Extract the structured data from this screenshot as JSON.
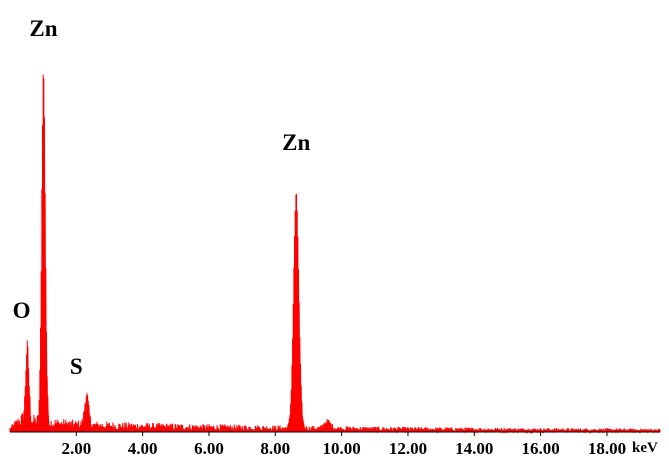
{
  "chart_data": {
    "type": "line",
    "title": "",
    "xlabel": "keV",
    "ylabel": "",
    "xlim": [
      0,
      19.6
    ],
    "ylim": [
      0,
      100
    ],
    "grid": false,
    "legend": "none",
    "series_color": "#ff0000",
    "x_ticks": [
      "2.00",
      "4.00",
      "6.00",
      "8.00",
      "10.00",
      "12.00",
      "14.00",
      "16.00",
      "18.00"
    ],
    "x_tick_values": [
      2,
      4,
      6,
      8,
      10,
      12,
      14,
      16,
      18
    ],
    "x_unit_label": "keV",
    "peaks": [
      {
        "element": "O",
        "energy": 0.52,
        "intensity": 20.5,
        "width": 0.05
      },
      {
        "element": "Zn",
        "energy": 1.01,
        "intensity": 97.0,
        "width": 0.055
      },
      {
        "element": "S",
        "energy": 2.31,
        "intensity": 8.5,
        "width": 0.06
      },
      {
        "element": "Zn",
        "energy": 8.63,
        "intensity": 64.5,
        "width": 0.08
      },
      {
        "element": "Zn",
        "energy": 9.57,
        "intensity": 2.0,
        "width": 0.1
      }
    ],
    "background_level": 1.5,
    "annotations": [
      {
        "text": "Zn",
        "energy": 1.01
      },
      {
        "text": "O",
        "energy": 0.35
      },
      {
        "text": "S",
        "energy": 2.0
      },
      {
        "text": "Zn",
        "energy": 8.63
      }
    ]
  }
}
